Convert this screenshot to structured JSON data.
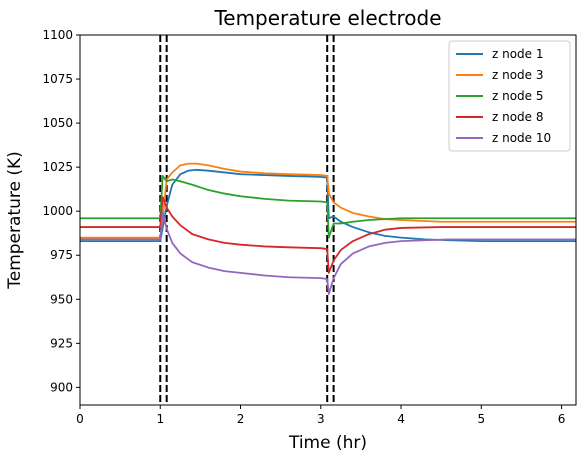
{
  "chart_data": {
    "type": "line",
    "title": "Temperature electrode",
    "xlabel": "Time (hr)",
    "ylabel": "Temperature (K)",
    "xlim": [
      0,
      6.18
    ],
    "ylim": [
      890,
      1100
    ],
    "xticks": [
      0,
      1,
      2,
      3,
      4,
      5,
      6
    ],
    "xtick_labels": [
      "0",
      "1",
      "2",
      "3",
      "4",
      "5",
      "6"
    ],
    "yticks": [
      900,
      925,
      950,
      975,
      1000,
      1025,
      1050,
      1075,
      1100
    ],
    "ytick_labels": [
      "900",
      "925",
      "950",
      "975",
      "1000",
      "1025",
      "1050",
      "1075",
      "1100"
    ],
    "grid": false,
    "legend_position": "top-right",
    "vlines": [
      {
        "x": 1.0,
        "style": "dashed",
        "color": "#000000"
      },
      {
        "x": 1.08,
        "style": "dashed",
        "color": "#000000"
      },
      {
        "x": 3.08,
        "style": "dashed",
        "color": "#000000"
      },
      {
        "x": 3.16,
        "style": "dashed",
        "color": "#000000"
      }
    ],
    "series": [
      {
        "name": "z node 1",
        "color": "#1f77b4",
        "x": [
          0,
          1.0,
          1.0,
          1.04,
          1.08,
          1.15,
          1.25,
          1.35,
          1.45,
          1.6,
          1.8,
          2.0,
          2.3,
          2.6,
          3.0,
          3.08,
          3.1,
          3.16,
          3.25,
          3.4,
          3.6,
          3.8,
          4.0,
          4.3,
          4.6,
          5.0,
          5.5,
          6.18
        ],
        "y": [
          983,
          983,
          983,
          993,
          1003,
          1015,
          1021,
          1023,
          1023.5,
          1023,
          1022,
          1021,
          1020.5,
          1020,
          1019.5,
          1019,
          996,
          997,
          994,
          991,
          988,
          986,
          985,
          984,
          983.5,
          983,
          983,
          983
        ]
      },
      {
        "name": "z node 3",
        "color": "#ff7f0e",
        "x": [
          0,
          1.0,
          1.0,
          1.04,
          1.08,
          1.15,
          1.25,
          1.35,
          1.45,
          1.6,
          1.8,
          2.0,
          2.3,
          2.6,
          3.0,
          3.08,
          3.1,
          3.16,
          3.25,
          3.4,
          3.6,
          3.8,
          4.0,
          4.5,
          5.0,
          6.18
        ],
        "y": [
          985,
          985,
          985,
          1000,
          1018,
          1022,
          1026,
          1027,
          1027,
          1026,
          1024,
          1022.5,
          1021.5,
          1021,
          1020.5,
          1020,
          1010,
          1005,
          1002,
          999,
          997,
          995.5,
          995,
          994,
          994,
          994
        ]
      },
      {
        "name": "z node 5",
        "color": "#2ca02c",
        "x": [
          0,
          1.0,
          1.0,
          1.03,
          1.08,
          1.15,
          1.25,
          1.4,
          1.6,
          1.8,
          2.0,
          2.3,
          2.6,
          3.0,
          3.08,
          3.1,
          3.16,
          3.25,
          3.4,
          3.6,
          3.8,
          4.0,
          4.5,
          5.0,
          6.18
        ],
        "y": [
          996,
          996,
          996,
          1020,
          1017,
          1018,
          1017,
          1015,
          1012,
          1010,
          1008.5,
          1007,
          1006,
          1005.5,
          1005,
          985,
          993,
          993,
          994,
          995,
          995.5,
          996,
          996,
          996,
          996
        ]
      },
      {
        "name": "z node 8",
        "color": "#d62728",
        "x": [
          0,
          1.0,
          1.0,
          1.03,
          1.08,
          1.15,
          1.25,
          1.4,
          1.6,
          1.8,
          2.0,
          2.3,
          2.6,
          3.0,
          3.08,
          3.1,
          3.16,
          3.25,
          3.4,
          3.6,
          3.8,
          4.0,
          4.5,
          5.0,
          6.18
        ],
        "y": [
          991,
          991,
          991,
          1008,
          1002,
          997,
          992,
          987,
          984,
          982,
          981,
          980,
          979.5,
          979,
          978.5,
          965,
          972,
          978,
          983,
          987,
          989.5,
          990.5,
          991,
          991,
          991
        ]
      },
      {
        "name": "z node 10",
        "color": "#9467bd",
        "x": [
          0,
          1.0,
          1.0,
          1.03,
          1.08,
          1.15,
          1.25,
          1.4,
          1.6,
          1.8,
          2.0,
          2.3,
          2.6,
          3.0,
          3.08,
          3.1,
          3.16,
          3.25,
          3.4,
          3.6,
          3.8,
          4.0,
          4.3,
          4.6,
          5.0,
          6.18
        ],
        "y": [
          984,
          984,
          984,
          999,
          990,
          982,
          976,
          971,
          968,
          966,
          965,
          963.5,
          962.5,
          962,
          961.5,
          953,
          962,
          970,
          976,
          980,
          982,
          983,
          983.5,
          984,
          984,
          984
        ]
      }
    ]
  }
}
